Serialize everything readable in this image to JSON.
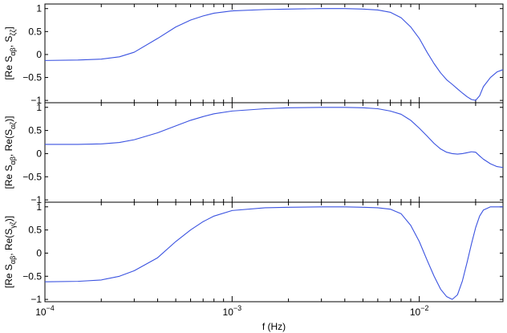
{
  "chart_data": [
    {
      "type": "line",
      "ylabel_main": "[Re S",
      "ylabel_sub1": "αβ",
      "ylabel_mid": ", S",
      "ylabel_sub2": "ζζ",
      "ylabel_end": "]",
      "xscale": "log",
      "xlim": [
        0.0001,
        0.028
      ],
      "ylim": [
        -1.05,
        1.1
      ],
      "yticks": [
        1,
        0.5,
        0,
        -0.5,
        -1
      ],
      "ytick_labels": [
        "1",
        "0.5",
        "0",
        "−0.5",
        "−1"
      ],
      "grid": false,
      "series": [
        {
          "color": "#3a52e0",
          "x": [
            0.0001,
            0.00015,
            0.0002,
            0.00025,
            0.0003,
            0.0004,
            0.0005,
            0.0006,
            0.0007,
            0.0008,
            0.001,
            0.0015,
            0.002,
            0.003,
            0.004,
            0.005,
            0.006,
            0.007,
            0.008,
            0.009,
            0.01,
            0.011,
            0.012,
            0.013,
            0.014,
            0.015,
            0.016,
            0.017,
            0.018,
            0.019,
            0.02,
            0.021,
            0.022,
            0.024,
            0.026,
            0.028
          ],
          "y": [
            -0.13,
            -0.12,
            -0.1,
            -0.05,
            0.05,
            0.35,
            0.6,
            0.75,
            0.84,
            0.9,
            0.95,
            0.98,
            0.99,
            1.0,
            1.0,
            0.99,
            0.97,
            0.92,
            0.8,
            0.6,
            0.35,
            0.05,
            -0.2,
            -0.4,
            -0.55,
            -0.65,
            -0.75,
            -0.84,
            -0.92,
            -0.98,
            -1.0,
            -0.9,
            -0.7,
            -0.5,
            -0.38,
            -0.33
          ]
        }
      ]
    },
    {
      "type": "line",
      "ylabel_main": "[Re S",
      "ylabel_sub1": "αβ",
      "ylabel_mid": ", Re(S",
      "ylabel_sub2": "αζ",
      "ylabel_end": ")]",
      "xscale": "log",
      "xlim": [
        0.0001,
        0.028
      ],
      "ylim": [
        -1.05,
        1.1
      ],
      "yticks": [
        1,
        0.5,
        0,
        -0.5,
        -1
      ],
      "ytick_labels": [
        "1",
        "0.5",
        "0",
        "−0.5",
        "−1"
      ],
      "grid": false,
      "series": [
        {
          "color": "#3a52e0",
          "x": [
            0.0001,
            0.00015,
            0.0002,
            0.00025,
            0.0003,
            0.0004,
            0.0005,
            0.0006,
            0.0007,
            0.0008,
            0.001,
            0.0015,
            0.002,
            0.003,
            0.004,
            0.005,
            0.006,
            0.007,
            0.008,
            0.009,
            0.01,
            0.011,
            0.012,
            0.013,
            0.014,
            0.015,
            0.016,
            0.017,
            0.018,
            0.019,
            0.02,
            0.021,
            0.022,
            0.024,
            0.026,
            0.028
          ],
          "y": [
            0.2,
            0.2,
            0.21,
            0.24,
            0.3,
            0.45,
            0.6,
            0.72,
            0.8,
            0.86,
            0.92,
            0.97,
            0.99,
            1.0,
            1.0,
            0.99,
            0.97,
            0.92,
            0.85,
            0.72,
            0.55,
            0.38,
            0.22,
            0.1,
            0.03,
            0.0,
            -0.01,
            0.0,
            0.02,
            0.04,
            0.03,
            -0.05,
            -0.12,
            -0.22,
            -0.28,
            -0.3
          ]
        }
      ]
    },
    {
      "type": "line",
      "ylabel_main": "[Re S",
      "ylabel_sub1": "αβ",
      "ylabel_mid": ", Re(S",
      "ylabel_sub2": "γζ",
      "ylabel_end": ")]",
      "xscale": "log",
      "xlim": [
        0.0001,
        0.028
      ],
      "ylim": [
        -1.05,
        1.1
      ],
      "yticks": [
        1,
        0.5,
        0,
        -0.5,
        -1
      ],
      "ytick_labels": [
        "1",
        "0.5",
        "0",
        "−0.5",
        "−1"
      ],
      "xlabel": "f (Hz)",
      "xtick_labels": [
        {
          "value": 0.0001,
          "base": "10",
          "exp": "−4"
        },
        {
          "value": 0.001,
          "base": "10",
          "exp": "−3"
        },
        {
          "value": 0.01,
          "base": "10",
          "exp": "−2"
        }
      ],
      "grid": false,
      "series": [
        {
          "color": "#3a52e0",
          "x": [
            0.0001,
            0.00015,
            0.0002,
            0.00025,
            0.0003,
            0.0004,
            0.0005,
            0.0006,
            0.0007,
            0.0008,
            0.001,
            0.0015,
            0.002,
            0.003,
            0.004,
            0.005,
            0.006,
            0.007,
            0.008,
            0.009,
            0.01,
            0.011,
            0.012,
            0.013,
            0.014,
            0.015,
            0.016,
            0.017,
            0.018,
            0.019,
            0.02,
            0.021,
            0.022,
            0.024,
            0.026,
            0.028
          ],
          "y": [
            -0.62,
            -0.61,
            -0.58,
            -0.5,
            -0.38,
            -0.1,
            0.25,
            0.5,
            0.68,
            0.8,
            0.92,
            0.98,
            0.99,
            1.0,
            1.0,
            0.99,
            0.98,
            0.95,
            0.85,
            0.6,
            0.25,
            -0.15,
            -0.5,
            -0.78,
            -0.94,
            -1.0,
            -0.9,
            -0.6,
            -0.2,
            0.2,
            0.55,
            0.8,
            0.93,
            1.0,
            1.0,
            1.0
          ]
        }
      ]
    }
  ]
}
